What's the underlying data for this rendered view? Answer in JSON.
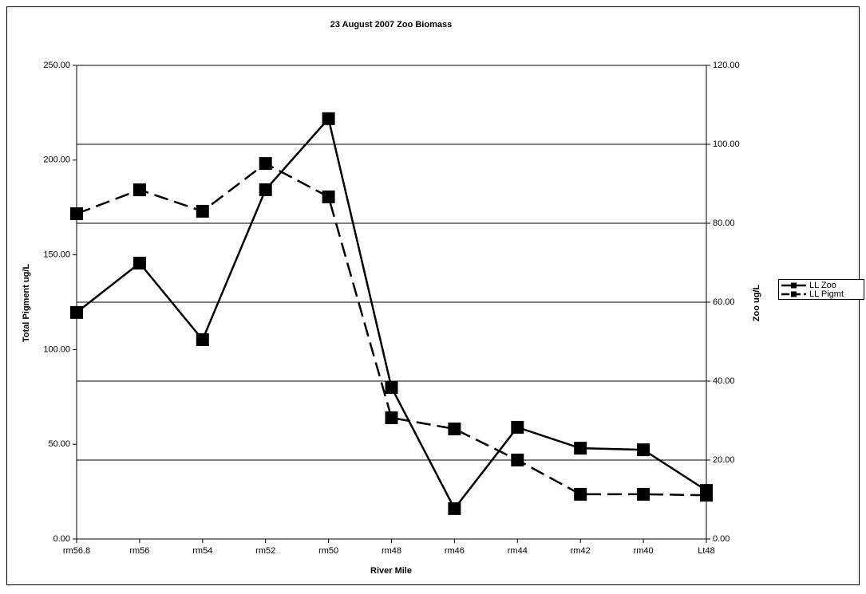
{
  "chart_data": {
    "type": "line",
    "title": "23 August 2007 Zoo Biomass",
    "x_label": "River Mile",
    "y_label": "Total Pigment ug/L",
    "y2_label": "Zoo ug/L",
    "categories": [
      "rm56.8",
      "rm56",
      "rm54",
      "rm52",
      "rm50",
      "rm48",
      "rm46",
      "rm44",
      "rm42",
      "rm40",
      "Lt48"
    ],
    "series": [
      {
        "name": "LL Zoo",
        "color": "#000000",
        "line_style": "solid",
        "axis": "y2",
        "values": [
          57.4,
          69.9,
          50.5,
          88.5,
          106.5,
          38.4,
          7.7,
          28.3,
          23.0,
          22.6,
          12.3
        ]
      },
      {
        "name": "LL Pigmt",
        "color": "#000000",
        "line_style": "dashed",
        "axis": "y",
        "values": [
          171.7,
          184.3,
          173.0,
          198.2,
          180.6,
          64.0,
          58.1,
          41.7,
          23.6,
          23.6,
          23.1
        ]
      }
    ],
    "ylim": [
      0,
      250
    ],
    "yticks": [
      {
        "value": 0,
        "label": "0.00"
      },
      {
        "value": 50,
        "label": "50.00"
      },
      {
        "value": 100,
        "label": "100.00"
      },
      {
        "value": 150,
        "label": "150.00"
      },
      {
        "value": 200,
        "label": "200.00"
      },
      {
        "value": 250,
        "label": "250.00"
      }
    ],
    "y2lim": [
      0,
      120
    ],
    "y2ticks": [
      {
        "value": 0,
        "label": "0.00"
      },
      {
        "value": 20,
        "label": "20.00"
      },
      {
        "value": 40,
        "label": "40.00"
      },
      {
        "value": 60,
        "label": "60.00"
      },
      {
        "value": 80,
        "label": "80.00"
      },
      {
        "value": 100,
        "label": "100.00"
      },
      {
        "value": 120,
        "label": "120.00"
      }
    ],
    "grid": "y2",
    "legend": "right"
  }
}
